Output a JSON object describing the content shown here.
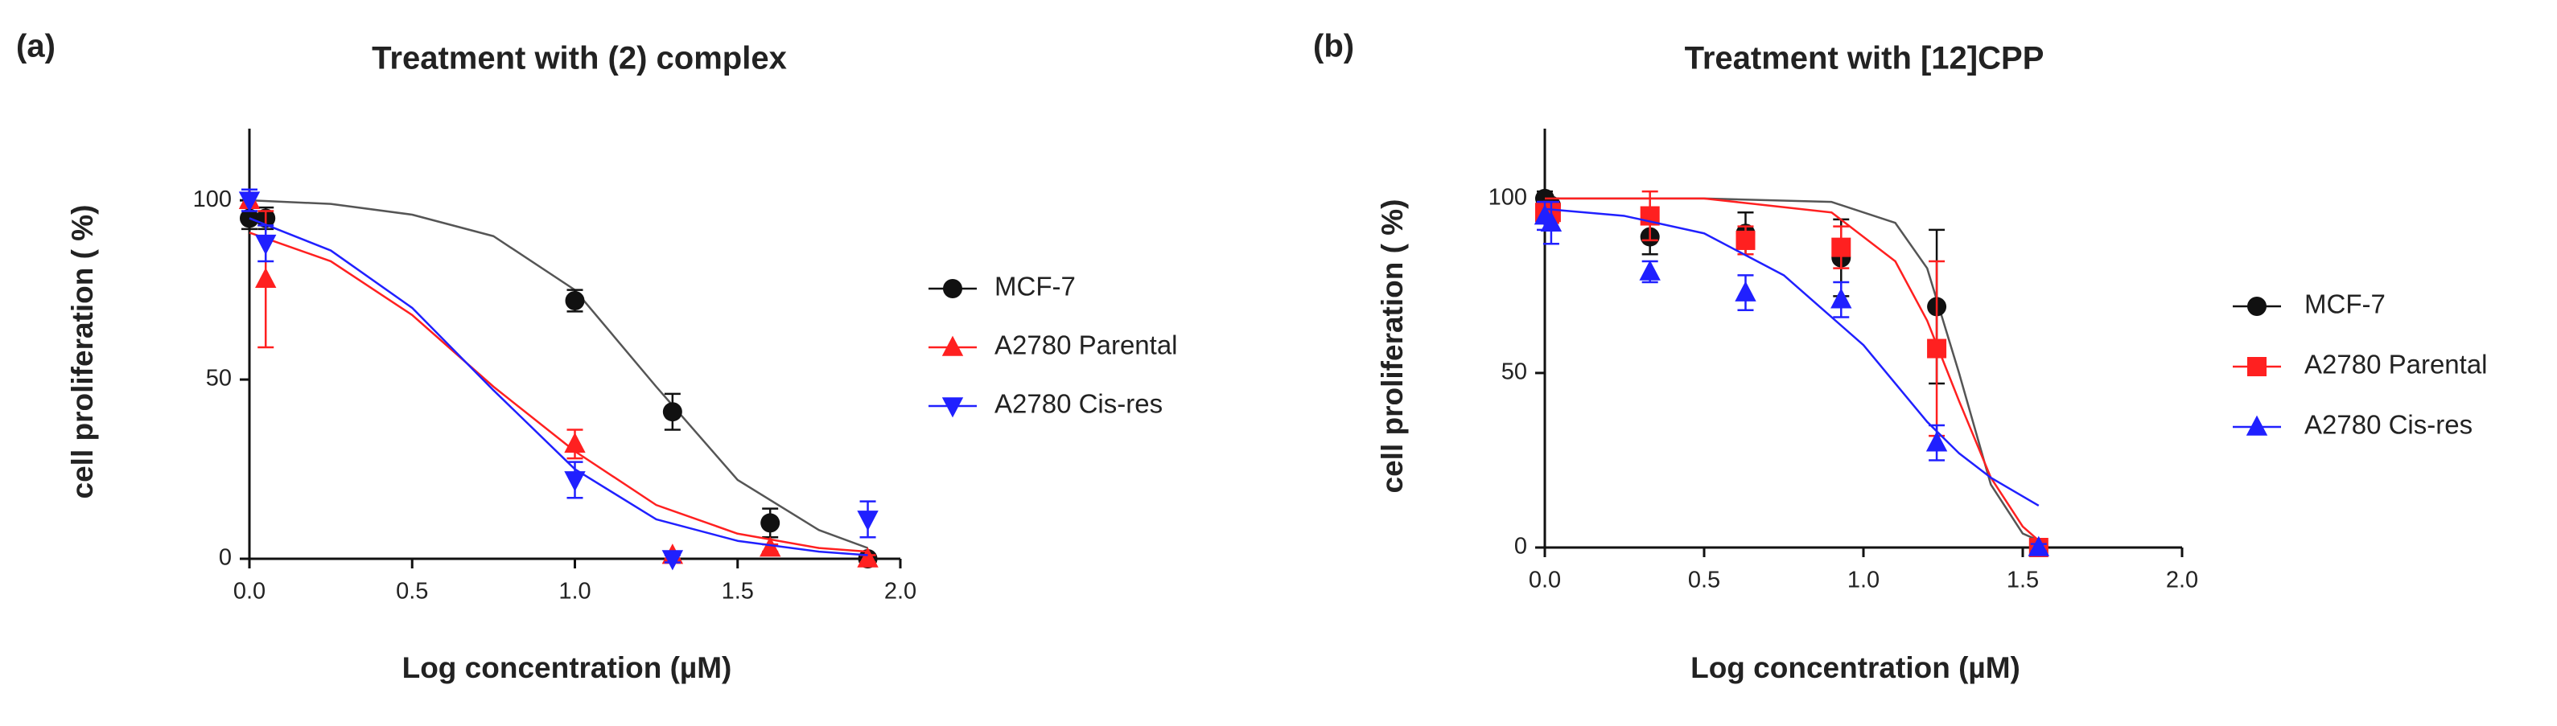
{
  "chart_data": [
    {
      "type": "scatter",
      "panel_label": "(a)",
      "title": "Treatment with (2) complex",
      "x_label": "Log concentration (µM)",
      "y_label": "cell proliferation ( %)",
      "xlim": [
        0,
        2
      ],
      "ylim": [
        0,
        120
      ],
      "xticks": [
        {
          "value": 0,
          "label": "0.0"
        },
        {
          "value": 0.5,
          "label": "0.5"
        },
        {
          "value": 1,
          "label": "1.0"
        },
        {
          "value": 1.5,
          "label": "1.5"
        },
        {
          "value": 2,
          "label": "2.0"
        }
      ],
      "yticks": [
        0,
        50,
        100
      ],
      "series": [
        {
          "name": "MCF-7",
          "color": "#111111",
          "marker": "circle",
          "x": [
            0,
            0.05,
            1,
            1.3,
            1.6,
            1.9
          ],
          "values": [
            95,
            95,
            72,
            41,
            10,
            0
          ],
          "errors": [
            3,
            3,
            3,
            5,
            4,
            1
          ],
          "fit": {
            "x": [
              0,
              0.25,
              0.5,
              0.75,
              1,
              1.25,
              1.5,
              1.75,
              1.9
            ],
            "values": [
              100,
              99,
              96,
              90,
              75,
              48,
              22,
              8,
              3
            ]
          }
        },
        {
          "name": "A2780 Parental",
          "color": "#ff2020",
          "marker": "triangle-up",
          "x": [
            0,
            0.05,
            1,
            1.3,
            1.6,
            1.9
          ],
          "values": [
            100,
            78,
            32,
            1,
            3,
            0
          ],
          "errors": [
            2,
            19,
            4,
            1,
            1,
            1
          ],
          "fit": {
            "x": [
              0,
              0.25,
              0.5,
              0.75,
              1,
              1.25,
              1.5,
              1.75,
              1.9
            ],
            "values": [
              91,
              83,
              68,
              48,
              30,
              15,
              7,
              3,
              2
            ]
          }
        },
        {
          "name": "A2780 Cis-res",
          "color": "#2020ff",
          "marker": "triangle-down",
          "x": [
            0,
            0.05,
            1,
            1.3,
            1.9
          ],
          "values": [
            100,
            88,
            22,
            0,
            11
          ],
          "errors": [
            3,
            5,
            5,
            1,
            5
          ],
          "fit": {
            "x": [
              0,
              0.25,
              0.5,
              0.75,
              1,
              1.25,
              1.5,
              1.75,
              1.9
            ],
            "values": [
              95,
              86,
              70,
              47,
              25,
              11,
              5,
              2,
              1
            ]
          }
        }
      ]
    },
    {
      "type": "scatter",
      "panel_label": "(b)",
      "title": "Treatment with [12]CPP",
      "x_label": "Log concentration (µM)",
      "y_label": "cell proliferation ( %)",
      "xlim": [
        0,
        2
      ],
      "ylim": [
        0,
        120
      ],
      "xticks": [
        {
          "value": 0,
          "label": "0.0"
        },
        {
          "value": 0.5,
          "label": "0.5"
        },
        {
          "value": 1,
          "label": "1.0"
        },
        {
          "value": 1.5,
          "label": "1.5"
        },
        {
          "value": 2,
          "label": "2.0"
        }
      ],
      "yticks": [
        0,
        50,
        100
      ],
      "series": [
        {
          "name": "MCF-7",
          "color": "#111111",
          "marker": "circle",
          "x": [
            0,
            0.02,
            0.33,
            0.63,
            0.93,
            1.23,
            1.55
          ],
          "values": [
            100,
            98,
            89,
            90,
            83,
            69,
            0
          ],
          "errors": [
            2,
            2,
            5,
            6,
            11,
            22,
            1
          ],
          "fit": {
            "x": [
              0,
              0.5,
              0.9,
              1.1,
              1.2,
              1.3,
              1.4,
              1.5,
              1.55
            ],
            "values": [
              100,
              100,
              99,
              93,
              80,
              50,
              18,
              4,
              2
            ]
          }
        },
        {
          "name": "A2780 Parental",
          "color": "#ff2020",
          "marker": "square",
          "x": [
            0,
            0.02,
            0.33,
            0.63,
            0.93,
            1.23,
            1.55
          ],
          "values": [
            96,
            96,
            95,
            88,
            86,
            57,
            0
          ],
          "errors": [
            3,
            3,
            7,
            4,
            6,
            25,
            1
          ],
          "fit": {
            "x": [
              0,
              0.5,
              0.9,
              1.1,
              1.2,
              1.3,
              1.4,
              1.5,
              1.55
            ],
            "values": [
              100,
              100,
              96,
              82,
              65,
              42,
              20,
              6,
              2
            ]
          }
        },
        {
          "name": "A2780 Cis-res",
          "color": "#2020ff",
          "marker": "triangle-up",
          "x": [
            0,
            0.02,
            0.33,
            0.63,
            0.93,
            1.23,
            1.55
          ],
          "values": [
            95,
            93,
            79,
            73,
            71,
            30,
            0
          ],
          "errors": [
            4,
            6,
            3,
            5,
            5,
            5,
            1
          ],
          "fit": {
            "x": [
              0,
              0.25,
              0.5,
              0.75,
              1,
              1.2,
              1.3,
              1.4,
              1.55
            ],
            "values": [
              97,
              95,
              90,
              78,
              58,
              36,
              27,
              20,
              12
            ]
          }
        }
      ]
    }
  ]
}
